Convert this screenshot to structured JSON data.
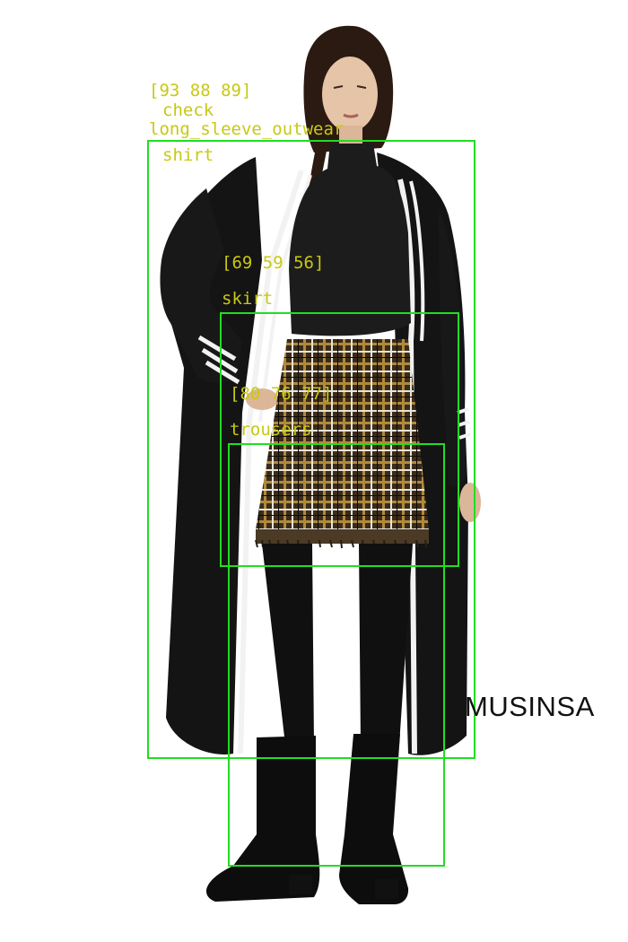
{
  "image": {
    "brand_mark": "MUSINSA",
    "colors": {
      "background": "#ffffff",
      "box": "#22dd22",
      "label": "#c8c814",
      "garment_black": "#141414",
      "stripe_white": "#f2f2f2",
      "plaid_base": "#3a2c1c",
      "plaid_gold": "#b08a3c"
    }
  },
  "detections": [
    {
      "color_values": "[93 88 89]",
      "attributes": [
        "check"
      ],
      "category": "long_sleeve_outwear",
      "extra": "shirt"
    },
    {
      "color_values": "[69 59 56]",
      "category": "skirt"
    },
    {
      "color_values": "[80 76 77]",
      "category": "trousers"
    }
  ]
}
